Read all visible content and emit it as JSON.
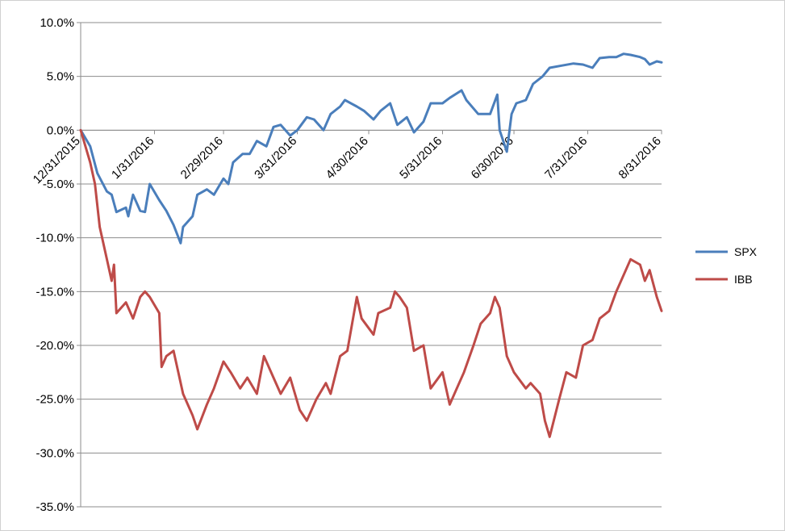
{
  "chart_data": {
    "type": "line",
    "title": "",
    "xlabel": "",
    "ylabel": "",
    "ylim": [
      -0.35,
      0.1
    ],
    "yticks": [
      0.1,
      0.05,
      0.0,
      -0.05,
      -0.1,
      -0.15,
      -0.2,
      -0.25,
      -0.3,
      -0.35
    ],
    "ytick_labels": [
      "10.0%",
      "5.0%",
      "0.0%",
      "-5.0%",
      "-10.0%",
      "-15.0%",
      "-20.0%",
      "-25.0%",
      "-30.0%",
      "-35.0%"
    ],
    "xlim": [
      "2015-12-31",
      "2016-08-31"
    ],
    "xticks": [
      "2015-12-31",
      "2016-01-31",
      "2016-02-29",
      "2016-03-31",
      "2016-04-30",
      "2016-05-31",
      "2016-06-30",
      "2016-07-31",
      "2016-08-31"
    ],
    "xtick_labels": [
      "12/31/2015",
      "1/31/2016",
      "2/29/2016",
      "3/31/2016",
      "4/30/2016",
      "5/31/2016",
      "6/30/2016",
      "7/31/2016",
      "8/31/2016"
    ],
    "grid": "horizontal",
    "legend": "right",
    "colors": {
      "SPX": "#4a7ebb",
      "IBB": "#be4b48",
      "grid": "#8c8c8c"
    },
    "series": [
      {
        "name": "SPX",
        "points": [
          [
            "2015-12-31",
            0.0
          ],
          [
            "2016-01-04",
            -0.015
          ],
          [
            "2016-01-07",
            -0.04
          ],
          [
            "2016-01-11",
            -0.057
          ],
          [
            "2016-01-13",
            -0.06
          ],
          [
            "2016-01-15",
            -0.076
          ],
          [
            "2016-01-19",
            -0.072
          ],
          [
            "2016-01-20",
            -0.08
          ],
          [
            "2016-01-22",
            -0.06
          ],
          [
            "2016-01-25",
            -0.075
          ],
          [
            "2016-01-27",
            -0.076
          ],
          [
            "2016-01-29",
            -0.05
          ],
          [
            "2016-02-02",
            -0.065
          ],
          [
            "2016-02-05",
            -0.075
          ],
          [
            "2016-02-08",
            -0.088
          ],
          [
            "2016-02-11",
            -0.105
          ],
          [
            "2016-02-12",
            -0.09
          ],
          [
            "2016-02-16",
            -0.08
          ],
          [
            "2016-02-18",
            -0.06
          ],
          [
            "2016-02-22",
            -0.055
          ],
          [
            "2016-02-25",
            -0.06
          ],
          [
            "2016-02-29",
            -0.045
          ],
          [
            "2016-03-02",
            -0.05
          ],
          [
            "2016-03-04",
            -0.03
          ],
          [
            "2016-03-08",
            -0.022
          ],
          [
            "2016-03-11",
            -0.022
          ],
          [
            "2016-03-14",
            -0.01
          ],
          [
            "2016-03-18",
            -0.015
          ],
          [
            "2016-03-21",
            0.003
          ],
          [
            "2016-03-24",
            0.005
          ],
          [
            "2016-03-28",
            -0.005
          ],
          [
            "2016-03-31",
            0.0
          ],
          [
            "2016-04-04",
            0.012
          ],
          [
            "2016-04-07",
            0.01
          ],
          [
            "2016-04-11",
            0.0
          ],
          [
            "2016-04-14",
            0.015
          ],
          [
            "2016-04-18",
            0.022
          ],
          [
            "2016-04-20",
            0.028
          ],
          [
            "2016-04-25",
            0.022
          ],
          [
            "2016-04-28",
            0.018
          ],
          [
            "2016-05-02",
            0.01
          ],
          [
            "2016-05-05",
            0.018
          ],
          [
            "2016-05-09",
            0.025
          ],
          [
            "2016-05-12",
            0.005
          ],
          [
            "2016-05-16",
            0.012
          ],
          [
            "2016-05-19",
            -0.002
          ],
          [
            "2016-05-23",
            0.008
          ],
          [
            "2016-05-26",
            0.025
          ],
          [
            "2016-05-31",
            0.025
          ],
          [
            "2016-06-03",
            0.03
          ],
          [
            "2016-06-08",
            0.037
          ],
          [
            "2016-06-10",
            0.028
          ],
          [
            "2016-06-15",
            0.015
          ],
          [
            "2016-06-20",
            0.015
          ],
          [
            "2016-06-23",
            0.033
          ],
          [
            "2016-06-24",
            0.0
          ],
          [
            "2016-06-27",
            -0.02
          ],
          [
            "2016-06-29",
            0.015
          ],
          [
            "2016-07-01",
            0.025
          ],
          [
            "2016-07-05",
            0.028
          ],
          [
            "2016-07-08",
            0.043
          ],
          [
            "2016-07-12",
            0.05
          ],
          [
            "2016-07-15",
            0.058
          ],
          [
            "2016-07-20",
            0.06
          ],
          [
            "2016-07-25",
            0.062
          ],
          [
            "2016-07-29",
            0.061
          ],
          [
            "2016-08-02",
            0.058
          ],
          [
            "2016-08-05",
            0.067
          ],
          [
            "2016-08-09",
            0.068
          ],
          [
            "2016-08-12",
            0.068
          ],
          [
            "2016-08-15",
            0.071
          ],
          [
            "2016-08-18",
            0.07
          ],
          [
            "2016-08-22",
            0.068
          ],
          [
            "2016-08-24",
            0.066
          ],
          [
            "2016-08-26",
            0.061
          ],
          [
            "2016-08-29",
            0.064
          ],
          [
            "2016-08-31",
            0.063
          ]
        ]
      },
      {
        "name": "IBB",
        "points": [
          [
            "2015-12-31",
            0.0
          ],
          [
            "2016-01-04",
            -0.03
          ],
          [
            "2016-01-06",
            -0.05
          ],
          [
            "2016-01-08",
            -0.09
          ],
          [
            "2016-01-11",
            -0.12
          ],
          [
            "2016-01-13",
            -0.14
          ],
          [
            "2016-01-14",
            -0.125
          ],
          [
            "2016-01-15",
            -0.17
          ],
          [
            "2016-01-19",
            -0.16
          ],
          [
            "2016-01-22",
            -0.175
          ],
          [
            "2016-01-25",
            -0.155
          ],
          [
            "2016-01-27",
            -0.15
          ],
          [
            "2016-01-29",
            -0.155
          ],
          [
            "2016-02-02",
            -0.17
          ],
          [
            "2016-02-03",
            -0.22
          ],
          [
            "2016-02-05",
            -0.21
          ],
          [
            "2016-02-08",
            -0.205
          ],
          [
            "2016-02-10",
            -0.225
          ],
          [
            "2016-02-12",
            -0.245
          ],
          [
            "2016-02-16",
            -0.265
          ],
          [
            "2016-02-18",
            -0.278
          ],
          [
            "2016-02-22",
            -0.255
          ],
          [
            "2016-02-25",
            -0.24
          ],
          [
            "2016-02-29",
            -0.215
          ],
          [
            "2016-03-03",
            -0.225
          ],
          [
            "2016-03-07",
            -0.24
          ],
          [
            "2016-03-10",
            -0.23
          ],
          [
            "2016-03-14",
            -0.245
          ],
          [
            "2016-03-17",
            -0.21
          ],
          [
            "2016-03-21",
            -0.23
          ],
          [
            "2016-03-24",
            -0.245
          ],
          [
            "2016-03-28",
            -0.23
          ],
          [
            "2016-04-01",
            -0.26
          ],
          [
            "2016-04-04",
            -0.27
          ],
          [
            "2016-04-08",
            -0.25
          ],
          [
            "2016-04-12",
            -0.235
          ],
          [
            "2016-04-14",
            -0.245
          ],
          [
            "2016-04-18",
            -0.21
          ],
          [
            "2016-04-21",
            -0.205
          ],
          [
            "2016-04-25",
            -0.155
          ],
          [
            "2016-04-27",
            -0.175
          ],
          [
            "2016-05-02",
            -0.19
          ],
          [
            "2016-05-04",
            -0.17
          ],
          [
            "2016-05-09",
            -0.165
          ],
          [
            "2016-05-11",
            -0.15
          ],
          [
            "2016-05-13",
            -0.155
          ],
          [
            "2016-05-16",
            -0.165
          ],
          [
            "2016-05-19",
            -0.205
          ],
          [
            "2016-05-23",
            -0.2
          ],
          [
            "2016-05-26",
            -0.24
          ],
          [
            "2016-05-31",
            -0.225
          ],
          [
            "2016-06-03",
            -0.255
          ],
          [
            "2016-06-06",
            -0.24
          ],
          [
            "2016-06-09",
            -0.225
          ],
          [
            "2016-06-13",
            -0.2
          ],
          [
            "2016-06-16",
            -0.18
          ],
          [
            "2016-06-20",
            -0.17
          ],
          [
            "2016-06-22",
            -0.155
          ],
          [
            "2016-06-24",
            -0.165
          ],
          [
            "2016-06-27",
            -0.21
          ],
          [
            "2016-06-30",
            -0.225
          ],
          [
            "2016-07-05",
            -0.24
          ],
          [
            "2016-07-07",
            -0.235
          ],
          [
            "2016-07-11",
            -0.245
          ],
          [
            "2016-07-13",
            -0.27
          ],
          [
            "2016-07-15",
            -0.285
          ],
          [
            "2016-07-19",
            -0.25
          ],
          [
            "2016-07-22",
            -0.225
          ],
          [
            "2016-07-26",
            -0.23
          ],
          [
            "2016-07-29",
            -0.2
          ],
          [
            "2016-08-02",
            -0.195
          ],
          [
            "2016-08-05",
            -0.175
          ],
          [
            "2016-08-09",
            -0.168
          ],
          [
            "2016-08-12",
            -0.15
          ],
          [
            "2016-08-16",
            -0.13
          ],
          [
            "2016-08-18",
            -0.12
          ],
          [
            "2016-08-22",
            -0.125
          ],
          [
            "2016-08-24",
            -0.14
          ],
          [
            "2016-08-26",
            -0.13
          ],
          [
            "2016-08-29",
            -0.155
          ],
          [
            "2016-08-31",
            -0.168
          ]
        ]
      }
    ]
  }
}
